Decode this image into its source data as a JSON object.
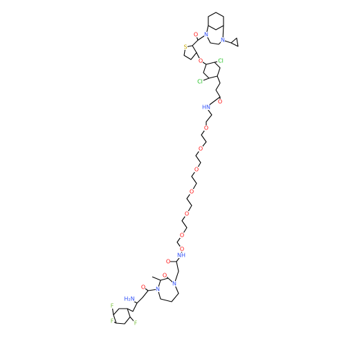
{
  "atoms": [
    "N",
    "N",
    "O",
    "S",
    "O",
    "Cl",
    "Cl",
    "O",
    "HN",
    "O",
    "O",
    "O",
    "O",
    "O",
    "O",
    "O",
    "NH",
    "O",
    "O",
    "N",
    "N",
    "O",
    "H₂N",
    "F",
    "F",
    "F"
  ]
}
